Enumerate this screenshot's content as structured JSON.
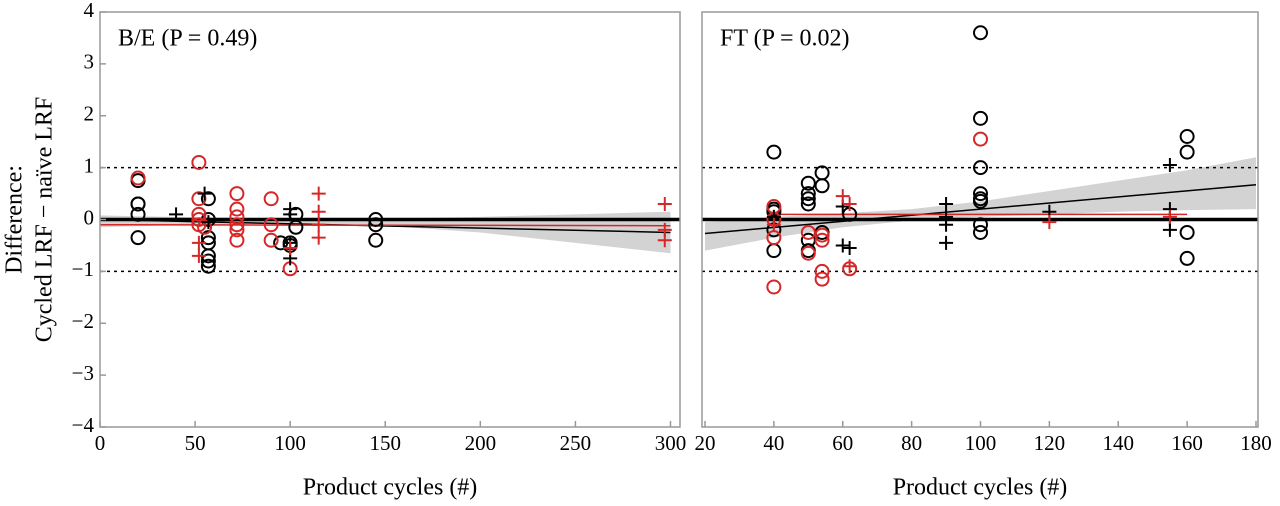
{
  "chart_data": [
    {
      "type": "scatter",
      "title": "B/E (P = 0.49)",
      "xlabel": "Product cycles (#)",
      "ylabel": [
        "Difference:",
        "Cycled LRF − naïve LRF"
      ],
      "xlim": [
        0,
        305
      ],
      "ylim": [
        -4,
        4
      ],
      "xticks": [
        0,
        50,
        100,
        150,
        200,
        250,
        300
      ],
      "yticks": [
        {
          "value": -4,
          "label": "−4"
        },
        {
          "value": -3,
          "label": "−3"
        },
        {
          "value": -2,
          "label": "−2"
        },
        {
          "value": -1,
          "label": "−1"
        },
        0,
        1,
        2,
        3,
        4
      ],
      "reference_lines": [
        {
          "y": 1,
          "dashed": true
        },
        {
          "y": -1,
          "dashed": true
        },
        {
          "y": 0,
          "dashed": false
        }
      ],
      "band": {
        "color": "#d3d3d3",
        "x": [
          0,
          50,
          100,
          150,
          200,
          250,
          300
        ],
        "upper": [
          0.08,
          0.04,
          0.02,
          0.02,
          0.05,
          0.1,
          0.15
        ],
        "lower": [
          -0.15,
          -0.1,
          -0.08,
          -0.12,
          -0.25,
          -0.45,
          -0.65
        ]
      },
      "lines": [
        {
          "color": "#000000",
          "x": [
            0,
            300
          ],
          "y": [
            0.0,
            -0.25
          ]
        },
        {
          "color": "#d62728",
          "x": [
            0,
            300
          ],
          "y": [
            -0.1,
            -0.12
          ]
        }
      ],
      "series": [
        {
          "marker": "circle",
          "color": "#000000",
          "x": [
            20,
            20,
            20,
            20,
            20,
            57,
            57,
            57,
            57,
            57,
            57,
            57,
            95,
            100,
            100,
            103,
            103,
            145,
            145,
            145
          ],
          "y": [
            0.75,
            0.3,
            0.3,
            0.1,
            -0.35,
            0.4,
            0.0,
            -0.35,
            -0.45,
            -0.7,
            -0.8,
            -0.9,
            -0.45,
            -0.45,
            -0.5,
            0.1,
            -0.15,
            0.0,
            -0.1,
            -0.4
          ]
        },
        {
          "marker": "circle",
          "color": "#d62728",
          "x": [
            20,
            52,
            52,
            52,
            52,
            52,
            55,
            72,
            72,
            72,
            72,
            72,
            72,
            90,
            90,
            90,
            100
          ],
          "y": [
            0.8,
            1.1,
            0.4,
            0.1,
            0.0,
            -0.1,
            -0.15,
            0.5,
            0.2,
            0.05,
            -0.1,
            -0.2,
            -0.4,
            0.4,
            -0.1,
            -0.4,
            -0.95
          ]
        },
        {
          "marker": "plus",
          "color": "#000000",
          "x": [
            40,
            55,
            57,
            100,
            100,
            100,
            100
          ],
          "y": [
            0.1,
            0.5,
            -0.05,
            0.2,
            0.1,
            -0.45,
            -0.75
          ]
        },
        {
          "marker": "plus",
          "color": "#d62728",
          "x": [
            52,
            52,
            100,
            115,
            115,
            115,
            115,
            297,
            297,
            297
          ],
          "y": [
            -0.45,
            -0.7,
            -0.55,
            0.5,
            0.15,
            -0.1,
            -0.35,
            0.3,
            -0.2,
            -0.4
          ]
        }
      ]
    },
    {
      "type": "scatter",
      "title": "FT (P = 0.02)",
      "xlabel": "Product cycles (#)",
      "xlim": [
        20,
        180
      ],
      "ylim": [
        -4,
        4
      ],
      "xticks": [
        20,
        40,
        60,
        80,
        100,
        120,
        140,
        160,
        180
      ],
      "reference_lines": [
        {
          "y": 1,
          "dashed": true
        },
        {
          "y": -1,
          "dashed": true
        },
        {
          "y": 0,
          "dashed": false
        }
      ],
      "band": {
        "color": "#d3d3d3",
        "x": [
          20,
          40,
          60,
          80,
          100,
          120,
          140,
          160,
          180
        ],
        "upper": [
          -0.05,
          0.05,
          0.12,
          0.2,
          0.35,
          0.55,
          0.75,
          0.95,
          1.2
        ],
        "lower": [
          -0.6,
          -0.35,
          -0.15,
          -0.02,
          0.05,
          0.1,
          0.15,
          0.18,
          0.2
        ]
      },
      "lines": [
        {
          "color": "#000000",
          "x": [
            20,
            180
          ],
          "y": [
            -0.27,
            0.67
          ]
        },
        {
          "color": "#d62728",
          "x": [
            40,
            160
          ],
          "y": [
            0.1,
            0.1
          ]
        }
      ],
      "series": [
        {
          "marker": "circle",
          "color": "#000000",
          "x": [
            40,
            40,
            40,
            40,
            40,
            50,
            50,
            50,
            50,
            50,
            50,
            54,
            54,
            54,
            62,
            100,
            100,
            100,
            100,
            100,
            100,
            100,
            100,
            160,
            160,
            160,
            160
          ],
          "y": [
            1.3,
            0.2,
            0.15,
            -0.2,
            -0.6,
            0.7,
            0.5,
            0.4,
            0.3,
            -0.4,
            -0.6,
            0.9,
            0.65,
            -0.25,
            0.1,
            3.6,
            1.95,
            1.0,
            0.5,
            0.4,
            0.35,
            -0.1,
            -0.25,
            1.6,
            1.3,
            -0.25,
            -0.75
          ]
        },
        {
          "marker": "circle",
          "color": "#d62728",
          "x": [
            40,
            40,
            40,
            40,
            50,
            50,
            54,
            54,
            54,
            54,
            62,
            100
          ],
          "y": [
            0.25,
            0.0,
            -0.35,
            -1.3,
            -0.25,
            -0.65,
            -0.3,
            -0.4,
            -1.0,
            -1.15,
            -0.95,
            1.55
          ]
        },
        {
          "marker": "plus",
          "color": "#000000",
          "x": [
            40,
            60,
            60,
            62,
            90,
            90,
            90,
            90,
            120,
            155,
            155,
            155,
            155
          ],
          "y": [
            0.05,
            0.25,
            -0.5,
            -0.55,
            0.3,
            0.05,
            -0.1,
            -0.45,
            0.15,
            1.05,
            0.2,
            0.0,
            -0.2
          ]
        },
        {
          "marker": "plus",
          "color": "#d62728",
          "x": [
            40,
            60,
            62,
            62,
            120,
            155
          ],
          "y": [
            -0.1,
            0.45,
            0.3,
            -0.9,
            -0.05,
            0.05
          ]
        }
      ]
    }
  ]
}
